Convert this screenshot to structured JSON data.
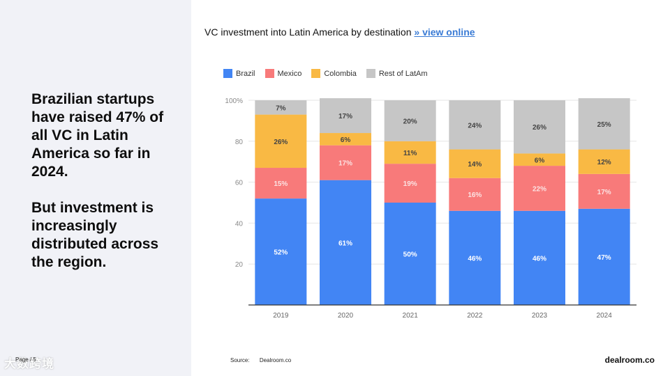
{
  "headline": {
    "line1": "Brazilian startups have raised 47% of all VC in Latin America so far in 2024.",
    "line2": "But investment is increasingly distributed across the region."
  },
  "page_label": "Page / 5",
  "watermark": "大数跨境",
  "chart_title": {
    "text": "VC investment into Latin America by destination",
    "link": "»  view online"
  },
  "source": {
    "label": "Source:",
    "value": "Dealroom.co"
  },
  "brand": "dealroom.co",
  "colors": {
    "Brazil": "#4285f4",
    "Mexico": "#f87a7a",
    "Colombia": "#f9b944",
    "Rest of LatAm": "#c6c6c6"
  },
  "chart_data": {
    "type": "bar",
    "stacked": true,
    "categories": [
      "2019",
      "2020",
      "2021",
      "2022",
      "2023",
      "2024"
    ],
    "series": [
      {
        "name": "Brazil",
        "values": [
          52,
          61,
          50,
          46,
          46,
          47
        ]
      },
      {
        "name": "Mexico",
        "values": [
          15,
          17,
          19,
          16,
          22,
          17
        ]
      },
      {
        "name": "Colombia",
        "values": [
          26,
          6,
          11,
          14,
          6,
          12
        ]
      },
      {
        "name": "Rest of LatAm",
        "values": [
          7,
          17,
          20,
          24,
          26,
          25
        ]
      }
    ],
    "yticks": [
      "20",
      "40",
      "60",
      "80",
      "100%"
    ],
    "ylim": [
      0,
      100
    ],
    "legend_position": "top-left",
    "grid": true
  }
}
